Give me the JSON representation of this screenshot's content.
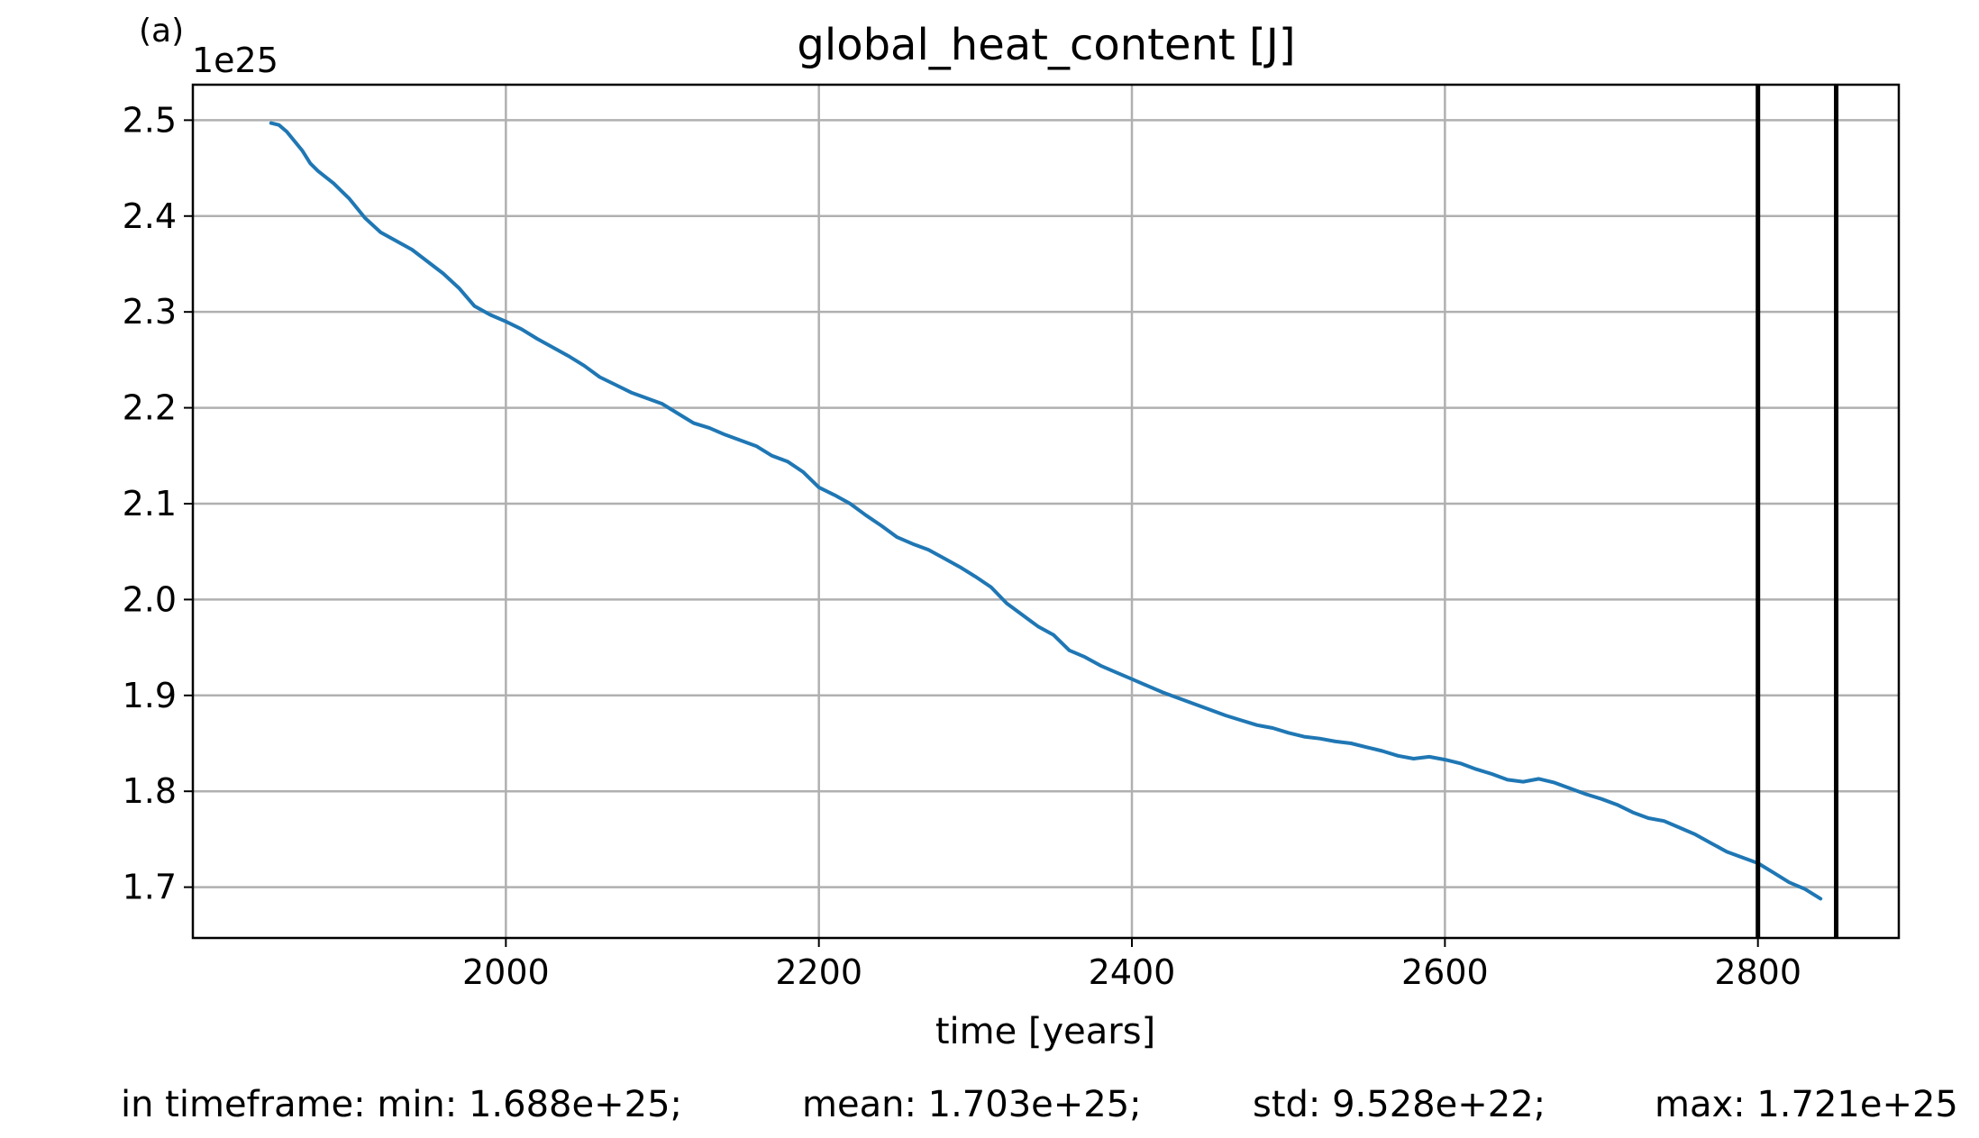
{
  "panel_label": "(a)",
  "chart_data": {
    "type": "line",
    "title": "global_heat_content [J]",
    "xlabel": "time [years]",
    "ylabel": "",
    "y_offset_label": "1e25",
    "y_scale_factor": 1e+25,
    "xlim": [
      1800,
      2890
    ],
    "ylim": [
      1.647,
      2.537
    ],
    "x_ticks": [
      2000,
      2200,
      2400,
      2600,
      2800
    ],
    "y_ticks": [
      1.7,
      1.8,
      1.9,
      2.0,
      2.1,
      2.2,
      2.3,
      2.4,
      2.5
    ],
    "x_tick_labels": [
      "2000",
      "2200",
      "2400",
      "2600",
      "2800"
    ],
    "y_tick_labels": [
      "1.7",
      "1.8",
      "1.9",
      "2.0",
      "2.1",
      "2.2",
      "2.3",
      "2.4",
      "2.5"
    ],
    "grid": true,
    "series": [
      {
        "color": "#1f77b4",
        "x": [
          1850,
          1855,
          1860,
          1865,
          1870,
          1875,
          1880,
          1890,
          1900,
          1910,
          1920,
          1940,
          1960,
          1970,
          1980,
          1990,
          2000,
          2010,
          2020,
          2040,
          2050,
          2060,
          2070,
          2080,
          2100,
          2110,
          2120,
          2130,
          2140,
          2160,
          2170,
          2180,
          2190,
          2200,
          2210,
          2220,
          2230,
          2240,
          2250,
          2260,
          2270,
          2280,
          2290,
          2300,
          2310,
          2320,
          2330,
          2340,
          2350,
          2360,
          2370,
          2380,
          2390,
          2400,
          2410,
          2420,
          2430,
          2440,
          2450,
          2460,
          2470,
          2480,
          2490,
          2500,
          2510,
          2520,
          2530,
          2540,
          2550,
          2560,
          2570,
          2580,
          2590,
          2600,
          2610,
          2620,
          2630,
          2640,
          2650,
          2660,
          2670,
          2680,
          2690,
          2700,
          2710,
          2720,
          2730,
          2740,
          2750,
          2760,
          2770,
          2780,
          2790,
          2800,
          2810,
          2820,
          2830,
          2840
        ],
        "y": [
          2.497,
          2.495,
          2.488,
          2.478,
          2.468,
          2.455,
          2.447,
          2.434,
          2.418,
          2.398,
          2.383,
          2.365,
          2.34,
          2.325,
          2.306,
          2.297,
          2.29,
          2.282,
          2.272,
          2.254,
          2.244,
          2.232,
          2.224,
          2.216,
          2.204,
          2.194,
          2.184,
          2.179,
          2.172,
          2.16,
          2.15,
          2.144,
          2.133,
          2.117,
          2.109,
          2.1,
          2.088,
          2.077,
          2.065,
          2.058,
          2.052,
          2.043,
          2.034,
          2.024,
          2.013,
          1.996,
          1.984,
          1.972,
          1.963,
          1.947,
          1.94,
          1.931,
          1.924,
          1.917,
          1.91,
          1.903,
          1.897,
          1.891,
          1.885,
          1.879,
          1.874,
          1.869,
          1.866,
          1.861,
          1.857,
          1.855,
          1.852,
          1.85,
          1.846,
          1.842,
          1.837,
          1.834,
          1.836,
          1.833,
          1.829,
          1.823,
          1.818,
          1.812,
          1.81,
          1.813,
          1.809,
          1.803,
          1.797,
          1.792,
          1.786,
          1.778,
          1.772,
          1.769,
          1.762,
          1.755,
          1.746,
          1.737,
          1.731,
          1.725,
          1.715,
          1.705,
          1.698,
          1.688
        ]
      }
    ],
    "vlines": [
      {
        "x": 2800,
        "color": "#000000"
      },
      {
        "x": 2850,
        "color": "#000000"
      }
    ]
  },
  "stats": {
    "min_label": "in timeframe: min: 1.688e+25;",
    "mean_label": "mean: 1.703e+25;",
    "std_label": "std: 9.528e+22;",
    "max_label": "max: 1.721e+25"
  }
}
